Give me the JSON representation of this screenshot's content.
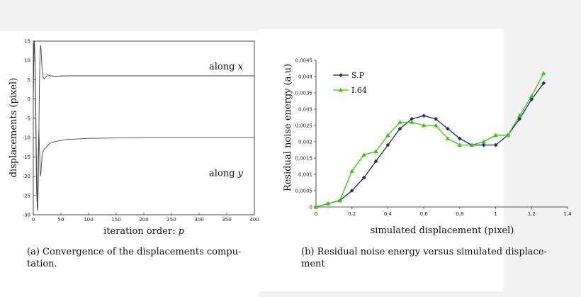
{
  "captions": {
    "a": "(a) Convergence of the displacements compu-tation.",
    "b": "(b) Residual noise energy versus simulated displace-ment"
  },
  "chart_data": [
    {
      "type": "line",
      "xlabel": "iteration order:",
      "xlabel_var": "p",
      "ylabel": "displacements (pixel)",
      "xlim": [
        0,
        400
      ],
      "ylim": [
        -30,
        15
      ],
      "xticks": [
        "0",
        "50",
        "100",
        "150",
        "200",
        "250",
        "300",
        "350",
        "400"
      ],
      "yticks": [
        "15",
        "10",
        "5",
        "0",
        "-5",
        "-10",
        "-15",
        "-20",
        "-25",
        "-30"
      ],
      "annotations": [
        {
          "text": "along",
          "var": "x",
          "series": 0
        },
        {
          "text": "along",
          "var": "y",
          "series": 1
        }
      ],
      "series": [
        {
          "color": "#444444",
          "x": [
            0,
            1,
            2,
            3,
            4,
            5,
            6,
            7,
            8,
            9,
            10,
            11,
            12,
            13,
            14,
            15,
            16,
            18,
            20,
            23,
            26,
            30,
            40,
            60,
            100,
            200,
            400
          ],
          "y": [
            0,
            14,
            15,
            11,
            3,
            -8,
            -20,
            -28,
            -29,
            -22,
            -10,
            3,
            11,
            14,
            13,
            10,
            7.5,
            5.5,
            5.2,
            5.8,
            6.3,
            6.0,
            5.9,
            6.0,
            6.0,
            6.0,
            6.0
          ]
        },
        {
          "color": "#444444",
          "x": [
            0,
            1,
            2,
            3,
            4,
            5,
            6,
            7,
            8,
            9,
            10,
            11,
            12,
            13,
            14,
            15,
            16,
            18,
            20,
            23,
            26,
            30,
            40,
            60,
            100,
            200,
            400
          ],
          "y": [
            0,
            12,
            14,
            9,
            0,
            -14,
            -24,
            -27,
            -23,
            -15,
            -8,
            -12,
            -17,
            -20,
            -19,
            -16.5,
            -14.5,
            -13.5,
            -13,
            -12.6,
            -12,
            -11.5,
            -11,
            -10.5,
            -10.2,
            -10,
            -10
          ]
        }
      ]
    },
    {
      "type": "line",
      "xlabel": "simulated displacement (pixel)",
      "ylabel": "Residual noise energy (a.u)",
      "xlim": [
        0,
        1.4
      ],
      "ylim": [
        0,
        0.0045
      ],
      "xticks": [
        "0",
        "0,2",
        "0,4",
        "0,6",
        "0,8",
        "1",
        "1,2",
        "1,4"
      ],
      "yticks": [
        "0,0045",
        "0,004",
        "0,0035",
        "0,003",
        "0,0025",
        "0,002",
        "0,0015",
        "0,001",
        "0,0005",
        "0"
      ],
      "legend_position": "top-left",
      "series": [
        {
          "name": "S.P",
          "color": "#1a237e",
          "marker": "diamond",
          "x": [
            0,
            0.067,
            0.133,
            0.2,
            0.267,
            0.333,
            0.4,
            0.467,
            0.533,
            0.6,
            0.667,
            0.733,
            0.8,
            0.867,
            0.933,
            1.0,
            1.067,
            1.133,
            1.2,
            1.267
          ],
          "y": [
            0,
            0.0001,
            0.0002,
            0.0005,
            0.0009,
            0.0014,
            0.0019,
            0.0024,
            0.0027,
            0.0028,
            0.0027,
            0.0024,
            0.0021,
            0.0019,
            0.0019,
            0.0019,
            0.0022,
            0.0027,
            0.0033,
            0.0038
          ]
        },
        {
          "name": "I.64",
          "color": "#33cc00",
          "marker": "triangle",
          "x": [
            0,
            0.067,
            0.133,
            0.2,
            0.267,
            0.333,
            0.4,
            0.467,
            0.533,
            0.6,
            0.667,
            0.733,
            0.8,
            0.867,
            0.933,
            1.0,
            1.067,
            1.133,
            1.2,
            1.267
          ],
          "y": [
            0,
            0.0001,
            0.0002,
            0.0011,
            0.0016,
            0.0017,
            0.0022,
            0.0026,
            0.0026,
            0.0025,
            0.0025,
            0.0021,
            0.0019,
            0.0019,
            0.002,
            0.0022,
            0.0022,
            0.0028,
            0.0034,
            0.0041
          ]
        }
      ]
    }
  ]
}
